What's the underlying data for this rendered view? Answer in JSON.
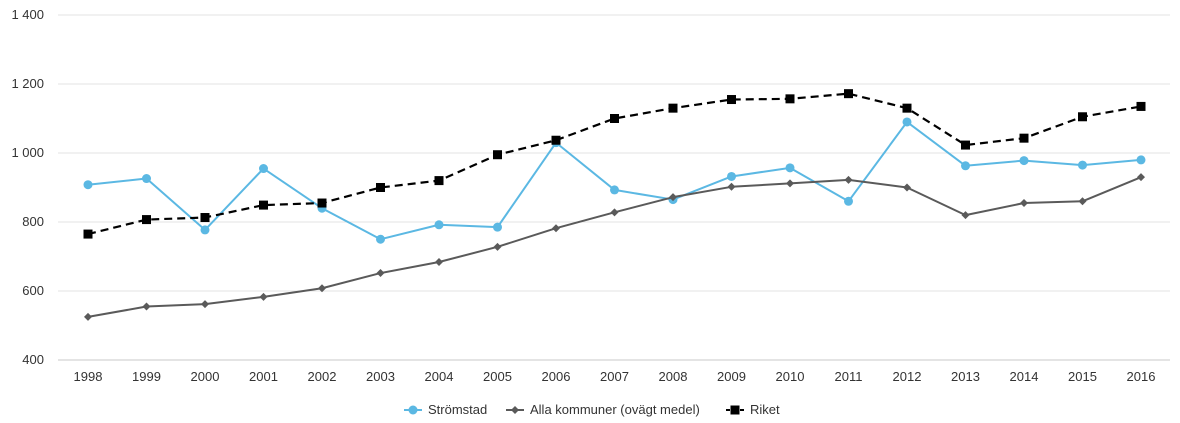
{
  "chart_data": {
    "type": "line",
    "title": "",
    "xlabel": "",
    "ylabel": "",
    "categories": [
      "1998",
      "1999",
      "2000",
      "2001",
      "2002",
      "2003",
      "2004",
      "2005",
      "2006",
      "2007",
      "2008",
      "2009",
      "2010",
      "2011",
      "2012",
      "2013",
      "2014",
      "2015",
      "2016"
    ],
    "ylim": [
      400,
      1400
    ],
    "yticks": [
      400,
      600,
      800,
      1000,
      1200,
      1400
    ],
    "ytick_labels": [
      "400",
      "600",
      "800",
      "1 000",
      "1 200",
      "1 400"
    ],
    "grid": true,
    "legend_position": "bottom",
    "series": [
      {
        "name": "Strömstad",
        "color": "#5bb8e3",
        "line_style": "solid",
        "marker": "circle",
        "values": [
          908,
          926,
          777,
          955,
          840,
          750,
          792,
          785,
          1030,
          893,
          865,
          932,
          957,
          860,
          1090,
          963,
          978,
          965,
          980
        ]
      },
      {
        "name": "Alla kommuner (ovägt medel)",
        "color": "#5a5a5a",
        "line_style": "solid",
        "marker": "diamond",
        "values": [
          525,
          555,
          562,
          583,
          608,
          652,
          684,
          728,
          782,
          828,
          872,
          902,
          912,
          922,
          900,
          820,
          855,
          860,
          930
        ]
      },
      {
        "name": "Riket",
        "color": "#000000",
        "line_style": "dashed",
        "marker": "square",
        "values": [
          765,
          807,
          813,
          849,
          855,
          900,
          920,
          995,
          1037,
          1100,
          1130,
          1155,
          1157,
          1172,
          1130,
          1023,
          1043,
          1105,
          1135
        ]
      }
    ]
  }
}
